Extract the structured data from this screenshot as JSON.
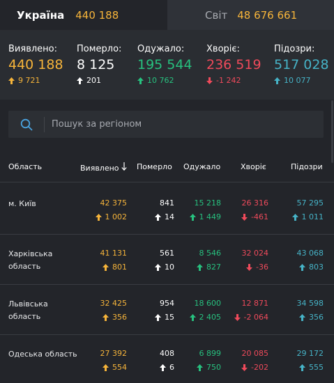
{
  "tabs": {
    "ukraine": {
      "label": "Україна",
      "count": "440 188"
    },
    "world": {
      "label": "Світ",
      "count": "48 676 661"
    }
  },
  "summary": {
    "detected": {
      "label": "Виявлено:",
      "value": "440 188",
      "delta": "9 721"
    },
    "died": {
      "label": "Померло:",
      "value": "8 125",
      "delta": "201"
    },
    "recovered": {
      "label": "Одужало:",
      "value": "195 544",
      "delta": "10 762"
    },
    "sick": {
      "label": "Хворіє:",
      "value": "236 519",
      "delta": "-1 242"
    },
    "suspected": {
      "label": "Підозри:",
      "value": "517 028",
      "delta": "10 077"
    }
  },
  "search": {
    "placeholder": "Пошук за регіоном"
  },
  "table": {
    "headers": {
      "region": "Область",
      "detected": "Виявлено",
      "died": "Померло",
      "recovered": "Одужало",
      "sick": "Хворіє",
      "suspected": "Підозри"
    },
    "rows": [
      {
        "region": "м. Київ",
        "detected": "42 375",
        "detected_delta": "1 002",
        "died": "841",
        "died_delta": "14",
        "recovered": "15 218",
        "recovered_delta": "1 449",
        "sick": "26 316",
        "sick_delta": "-461",
        "suspected": "57 295",
        "suspected_delta": "1 011"
      },
      {
        "region": "Харківська область",
        "detected": "41 131",
        "detected_delta": "801",
        "died": "561",
        "died_delta": "10",
        "recovered": "8 546",
        "recovered_delta": "827",
        "sick": "32 024",
        "sick_delta": "-36",
        "suspected": "43 068",
        "suspected_delta": "803"
      },
      {
        "region": "Львівська область",
        "detected": "32 425",
        "detected_delta": "356",
        "died": "954",
        "died_delta": "15",
        "recovered": "18 600",
        "recovered_delta": "2 405",
        "sick": "12 871",
        "sick_delta": "-2 064",
        "suspected": "34 598",
        "suspected_delta": "356"
      },
      {
        "region": "Одеська область",
        "detected": "27 392",
        "detected_delta": "554",
        "died": "408",
        "died_delta": "6",
        "recovered": "6 899",
        "recovered_delta": "750",
        "sick": "20 085",
        "sick_delta": "-202",
        "suspected": "29 172",
        "suspected_delta": "555"
      }
    ]
  },
  "colors": {
    "detected": "#f6b43a",
    "died": "#ffffff",
    "recovered": "#27c17f",
    "sick": "#ef4a5b",
    "suspected": "#46b3c7",
    "background": "#23252a"
  },
  "icons": {
    "search": "search-icon",
    "up": "arrow-up-icon",
    "down": "arrow-down-icon",
    "sort": "sort-down-icon"
  }
}
